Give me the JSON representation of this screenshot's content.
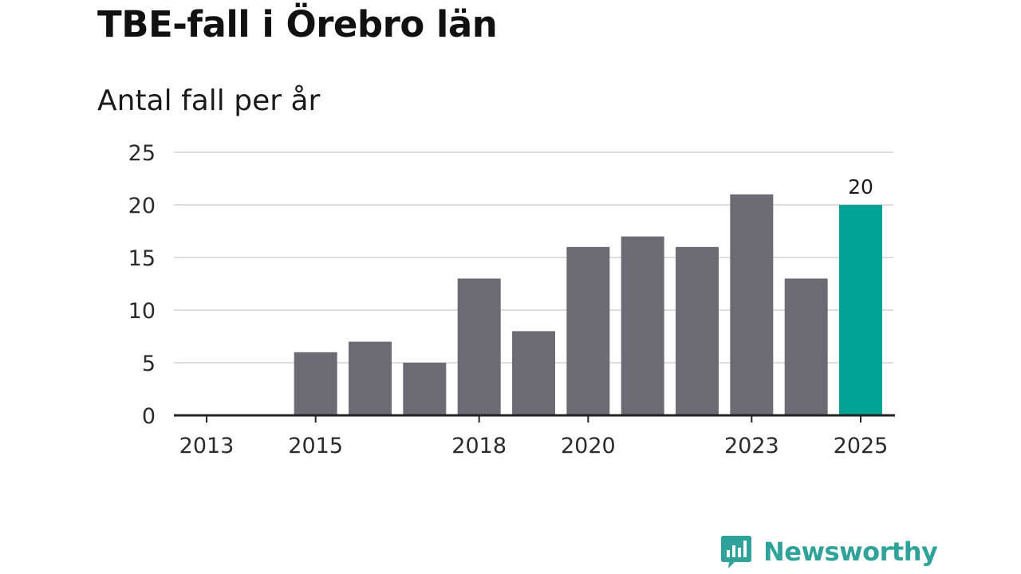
{
  "chart_data": {
    "type": "bar",
    "title": "TBE-fall i Örebro län",
    "subtitle": "Antal fall per år",
    "xlabel": "",
    "ylabel": "",
    "categories": [
      "2013",
      "2014",
      "2015",
      "2016",
      "2017",
      "2018",
      "2019",
      "2020",
      "2021",
      "2022",
      "2023",
      "2024",
      "2025"
    ],
    "values": [
      0,
      0,
      6,
      7,
      5,
      13,
      8,
      16,
      17,
      16,
      21,
      13,
      20
    ],
    "x_tick_labels": [
      "2013",
      "2015",
      "2018",
      "2020",
      "2023",
      "2025"
    ],
    "y_ticks": [
      0,
      5,
      10,
      15,
      20,
      25
    ],
    "ylim": [
      0,
      25
    ],
    "grid": true,
    "highlight_index": 12,
    "data_labels": [
      {
        "category": "2025",
        "text": "20"
      }
    ],
    "colors": {
      "bar": "#6c6b73",
      "highlight": "#00a396",
      "grid": "#dddddd",
      "axis": "#222222"
    }
  },
  "brand": {
    "name": "Newsworthy",
    "logo_icon": "bar-chart-speech-bubble-icon",
    "color": "#2fa39a"
  }
}
